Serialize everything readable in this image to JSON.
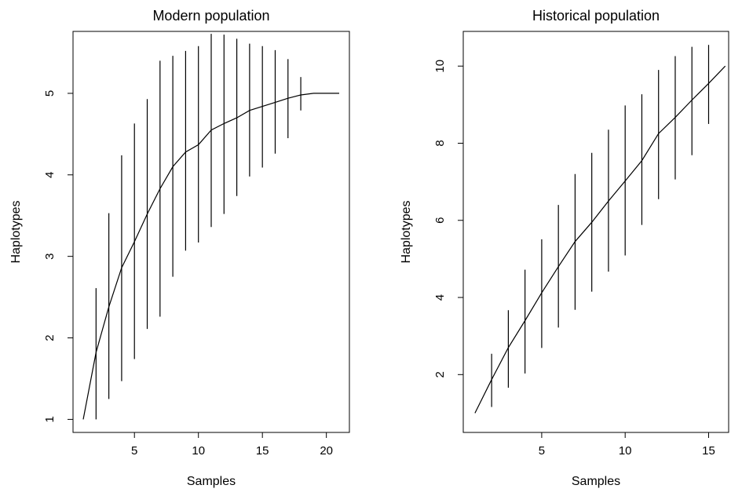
{
  "chart_data": [
    {
      "type": "line",
      "title": "Modern population",
      "xlabel": "Samples",
      "ylabel": "Haplotypes",
      "xlim": [
        0.2,
        21.8
      ],
      "ylim": [
        0.84,
        5.76
      ],
      "xticks": [
        5,
        10,
        15,
        20
      ],
      "yticks": [
        1,
        2,
        3,
        4,
        5
      ],
      "grid": false,
      "legend": "none",
      "series": [
        {
          "x": [
            1,
            2,
            3,
            4,
            5,
            6,
            7,
            8,
            9,
            10,
            11,
            12,
            13,
            14,
            15,
            16,
            17,
            18,
            19,
            20,
            21
          ],
          "y": [
            1.0,
            1.82,
            2.38,
            2.86,
            3.18,
            3.52,
            3.83,
            4.1,
            4.28,
            4.37,
            4.55,
            4.63,
            4.7,
            4.79,
            4.84,
            4.89,
            4.94,
            4.98,
            5.0,
            5.0,
            5.0
          ],
          "ymin": [
            null,
            1.0,
            1.25,
            1.47,
            1.74,
            2.11,
            2.26,
            2.75,
            3.07,
            3.17,
            3.36,
            3.52,
            3.74,
            3.98,
            4.09,
            4.26,
            4.45,
            4.79,
            null,
            null,
            null
          ],
          "ymax": [
            null,
            2.61,
            3.53,
            4.24,
            4.63,
            4.93,
            5.4,
            5.46,
            5.52,
            5.58,
            5.73,
            5.72,
            5.67,
            5.61,
            5.58,
            5.53,
            5.42,
            5.2,
            null,
            null,
            null
          ]
        }
      ]
    },
    {
      "type": "line",
      "title": "Historical population",
      "xlabel": "Samples",
      "ylabel": "Haplotypes",
      "xlim": [
        0.3,
        16.2
      ],
      "ylim": [
        0.5,
        10.9
      ],
      "xticks": [
        5,
        10,
        15
      ],
      "yticks": [
        2,
        4,
        6,
        8,
        10
      ],
      "grid": false,
      "legend": "none",
      "series": [
        {
          "x": [
            1,
            2,
            3,
            4,
            5,
            6,
            7,
            8,
            9,
            10,
            11,
            12,
            13,
            14,
            15,
            16
          ],
          "y": [
            1.0,
            1.87,
            2.7,
            3.4,
            4.12,
            4.8,
            5.45,
            5.95,
            6.5,
            7.02,
            7.55,
            8.25,
            8.67,
            9.12,
            9.55,
            10.0
          ],
          "ymin": [
            null,
            1.16,
            1.66,
            2.03,
            2.69,
            3.22,
            3.68,
            4.15,
            4.67,
            5.09,
            5.88,
            6.55,
            7.06,
            7.69,
            8.5,
            null
          ],
          "ymax": [
            null,
            2.54,
            3.67,
            4.72,
            5.51,
            6.4,
            7.2,
            7.75,
            8.35,
            8.98,
            9.27,
            9.9,
            10.26,
            10.5,
            10.55,
            null
          ]
        }
      ]
    }
  ]
}
